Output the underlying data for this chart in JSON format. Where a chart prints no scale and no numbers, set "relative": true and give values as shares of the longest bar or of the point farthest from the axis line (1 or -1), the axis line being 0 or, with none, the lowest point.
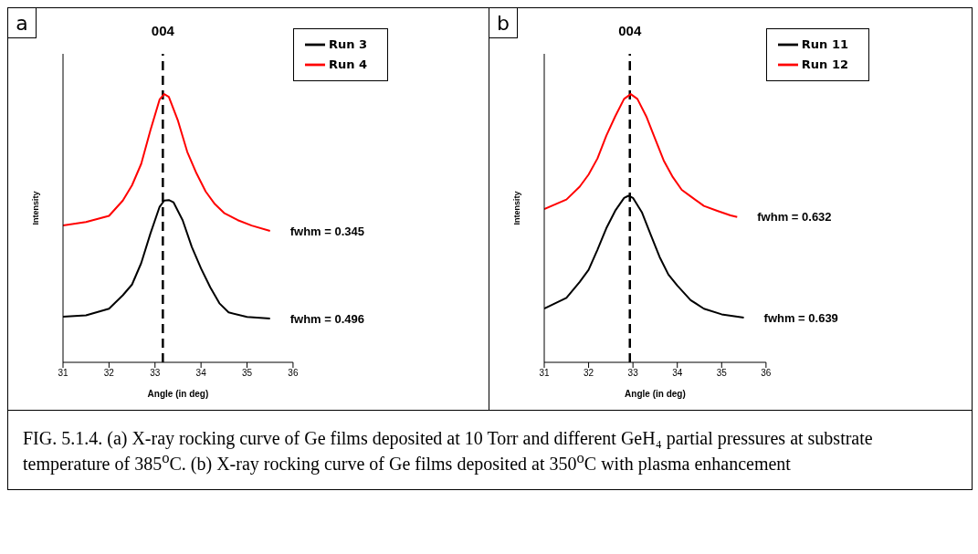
{
  "chart_data": [
    {
      "type": "line",
      "title": "a",
      "xlabel": "Angle (in deg)",
      "ylabel": "Intensity",
      "relative": true,
      "xlim": [
        31,
        36
      ],
      "xticks": [
        31,
        32,
        33,
        34,
        35,
        36
      ],
      "legend": "top right",
      "grid": false,
      "marker": "none",
      "line_style": "solid",
      "series": [
        {
          "name": "Run 3",
          "color": "#000000",
          "x": [
            31.0,
            31.5,
            32.0,
            32.3,
            32.5,
            32.7,
            32.9,
            33.1,
            33.2,
            33.3,
            33.4,
            33.6,
            33.8,
            34.0,
            34.2,
            34.4,
            34.6,
            35.0,
            35.5
          ],
          "values": [
            0.17,
            0.175,
            0.2,
            0.25,
            0.29,
            0.37,
            0.48,
            0.58,
            0.603,
            0.605,
            0.597,
            0.53,
            0.43,
            0.35,
            0.28,
            0.22,
            0.186,
            0.169,
            0.163
          ]
        },
        {
          "name": "Run 4",
          "color": "#ff0000",
          "x": [
            31.0,
            31.5,
            32.0,
            32.3,
            32.5,
            32.7,
            32.9,
            33.1,
            33.2,
            33.3,
            33.5,
            33.7,
            33.9,
            34.1,
            34.3,
            34.5,
            34.8,
            35.1,
            35.5
          ],
          "values": [
            0.51,
            0.523,
            0.546,
            0.603,
            0.66,
            0.74,
            0.865,
            0.98,
            1.0,
            0.99,
            0.9,
            0.785,
            0.705,
            0.637,
            0.59,
            0.557,
            0.53,
            0.51,
            0.49
          ]
        }
      ],
      "ref_lines": [
        {
          "axis": "x",
          "value": 33.17,
          "color": "#000000",
          "line_style": "dashed"
        }
      ],
      "annotations": [
        "004",
        "fwhm = 0.496",
        "fwhm = 0.345"
      ]
    },
    {
      "type": "line",
      "title": "b",
      "xlabel": "Angle (in deg)",
      "ylabel": "Intensity",
      "relative": true,
      "xlim": [
        31,
        36
      ],
      "xticks": [
        31,
        32,
        33,
        34,
        35,
        36
      ],
      "legend": "top right",
      "grid": false,
      "marker": "none",
      "line_style": "solid",
      "series": [
        {
          "name": "Run 11",
          "color": "#000000",
          "x": [
            31.0,
            31.5,
            31.8,
            32.0,
            32.2,
            32.4,
            32.6,
            32.8,
            32.9,
            33.0,
            33.2,
            33.4,
            33.6,
            33.8,
            34.0,
            34.3,
            34.6,
            35.0,
            35.5
          ],
          "values": [
            0.2,
            0.24,
            0.3,
            0.345,
            0.42,
            0.5,
            0.565,
            0.613,
            0.621,
            0.613,
            0.56,
            0.476,
            0.393,
            0.327,
            0.286,
            0.232,
            0.2,
            0.179,
            0.167
          ]
        },
        {
          "name": "Run 12",
          "color": "#ff0000",
          "x": [
            31.0,
            31.5,
            31.8,
            32.0,
            32.2,
            32.4,
            32.6,
            32.8,
            32.95,
            33.1,
            33.3,
            33.5,
            33.7,
            33.9,
            34.1,
            34.3,
            34.6,
            34.9,
            35.2,
            35.35
          ],
          "values": [
            0.571,
            0.607,
            0.655,
            0.7,
            0.76,
            0.845,
            0.917,
            0.982,
            1.0,
            0.982,
            0.917,
            0.833,
            0.75,
            0.69,
            0.643,
            0.619,
            0.583,
            0.565,
            0.548,
            0.542
          ]
        }
      ],
      "ref_lines": [
        {
          "axis": "x",
          "value": 32.93,
          "color": "#000000",
          "line_style": "dashed"
        }
      ],
      "annotations": [
        "004",
        "fwhm = 0.639",
        "fwhm = 0.632",
        "FIG. 5.1.4. (a) X-ray rocking curve of Ge films deposited at 10 Torr and different GeH₄ partial pressures at substrate temperature of 385$^{o}$C. (b) X-ray rocking curve of Ge films deposited at 350$^{o}$C with plasma enhancement"
      ]
    }
  ]
}
